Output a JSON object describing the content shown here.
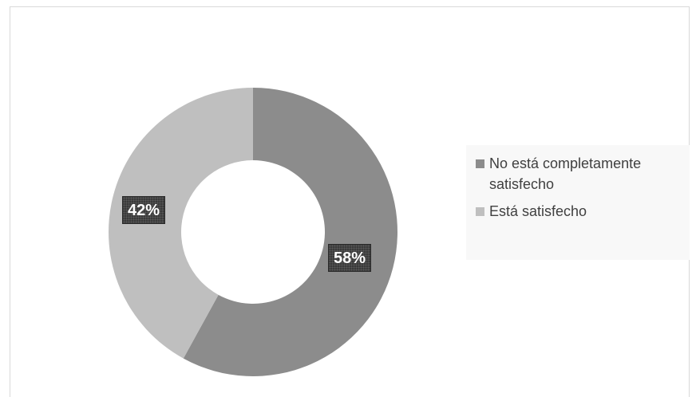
{
  "chart_data": {
    "type": "pie",
    "subtype": "donut",
    "slices": [
      {
        "label": "No está completamente satisfecho",
        "value": 58,
        "display": "58%",
        "color": "#8c8c8c"
      },
      {
        "label": "Está satisfecho",
        "value": 42,
        "display": "42%",
        "color": "#bfbfbf"
      }
    ],
    "legend_placement": "right"
  }
}
